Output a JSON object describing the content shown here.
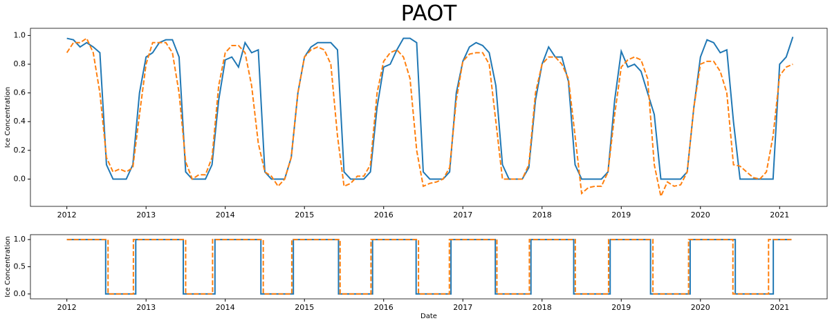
{
  "chart_data": [
    {
      "type": "line",
      "title": "PAOT",
      "ylabel": "Ice Concentration",
      "x": [
        2012,
        2012.083,
        2012.167,
        2012.25,
        2012.333,
        2012.417,
        2012.5,
        2012.583,
        2012.667,
        2012.75,
        2012.833,
        2012.917,
        2013,
        2013.083,
        2013.167,
        2013.25,
        2013.333,
        2013.417,
        2013.5,
        2013.583,
        2013.667,
        2013.75,
        2013.833,
        2013.917,
        2014,
        2014.083,
        2014.167,
        2014.25,
        2014.333,
        2014.417,
        2014.5,
        2014.583,
        2014.667,
        2014.75,
        2014.833,
        2014.917,
        2015,
        2015.083,
        2015.167,
        2015.25,
        2015.333,
        2015.417,
        2015.5,
        2015.583,
        2015.667,
        2015.75,
        2015.833,
        2015.917,
        2016,
        2016.083,
        2016.167,
        2016.25,
        2016.333,
        2016.417,
        2016.5,
        2016.583,
        2016.667,
        2016.75,
        2016.833,
        2016.917,
        2017,
        2017.083,
        2017.167,
        2017.25,
        2017.333,
        2017.417,
        2017.5,
        2017.583,
        2017.667,
        2017.75,
        2017.833,
        2017.917,
        2018,
        2018.083,
        2018.167,
        2018.25,
        2018.333,
        2018.417,
        2018.5,
        2018.583,
        2018.667,
        2018.75,
        2018.833,
        2018.917,
        2019,
        2019.083,
        2019.167,
        2019.25,
        2019.333,
        2019.417,
        2019.5,
        2019.583,
        2019.667,
        2019.75,
        2019.833,
        2019.917,
        2020,
        2020.083,
        2020.167,
        2020.25,
        2020.333,
        2020.417,
        2020.5,
        2020.583,
        2020.667,
        2020.75,
        2020.833,
        2020.917,
        2021,
        2021.083,
        2021.167
      ],
      "xlim": [
        2011.54,
        2021.6
      ],
      "xticks": [
        2012,
        2013,
        2014,
        2015,
        2016,
        2017,
        2018,
        2019,
        2020,
        2021
      ],
      "ylim": [
        -0.19,
        1.05
      ],
      "yticks": [
        {
          "value": 0,
          "label": "0.0"
        },
        0.2,
        0.4,
        0.6,
        0.8,
        {
          "value": 1,
          "label": "1.0"
        }
      ],
      "series": [
        {
          "color": "#1f77b4",
          "linestyle": "solid",
          "values": [
            0.98,
            0.97,
            0.92,
            0.95,
            0.92,
            0.88,
            0.1,
            0,
            0,
            0,
            0.1,
            0.6,
            0.85,
            0.88,
            0.95,
            0.97,
            0.97,
            0.85,
            0.05,
            0,
            0,
            0,
            0.1,
            0.55,
            0.83,
            0.85,
            0.78,
            0.95,
            0.88,
            0.9,
            0.05,
            0,
            0,
            0,
            0.15,
            0.6,
            0.85,
            0.92,
            0.95,
            0.95,
            0.95,
            0.9,
            0.05,
            0,
            0,
            0,
            0.05,
            0.5,
            0.78,
            0.8,
            0.9,
            0.98,
            0.98,
            0.95,
            0.05,
            0,
            0,
            0,
            0.05,
            0.6,
            0.82,
            0.92,
            0.95,
            0.93,
            0.88,
            0.65,
            0.1,
            0,
            0,
            0,
            0.08,
            0.55,
            0.8,
            0.92,
            0.85,
            0.85,
            0.68,
            0.1,
            0,
            0,
            0,
            0,
            0.05,
            0.55,
            0.89,
            0.78,
            0.8,
            0.75,
            0.6,
            0.45,
            0,
            0,
            0,
            0,
            0.05,
            0.5,
            0.85,
            0.97,
            0.95,
            0.88,
            0.9,
            0.4,
            0,
            0,
            0,
            0,
            0,
            0,
            0.8,
            0.85,
            0.99
          ]
        },
        {
          "color": "#ff7f0e",
          "linestyle": "dashed",
          "values": [
            0.88,
            0.95,
            0.95,
            0.98,
            0.88,
            0.6,
            0.15,
            0.05,
            0.07,
            0.05,
            0.08,
            0.45,
            0.8,
            0.95,
            0.95,
            0.95,
            0.88,
            0.6,
            0.12,
            0,
            0.03,
            0.03,
            0.15,
            0.65,
            0.88,
            0.93,
            0.93,
            0.88,
            0.65,
            0.25,
            0.05,
            0.02,
            -0.05,
            0,
            0.15,
            0.6,
            0.85,
            0.9,
            0.92,
            0.9,
            0.8,
            0.3,
            -0.05,
            -0.03,
            0.02,
            0.02,
            0.1,
            0.6,
            0.82,
            0.88,
            0.9,
            0.85,
            0.7,
            0.2,
            -0.05,
            -0.03,
            -0.02,
            0,
            0.08,
            0.55,
            0.82,
            0.87,
            0.88,
            0.88,
            0.8,
            0.4,
            0,
            0,
            0,
            0,
            0.1,
            0.6,
            0.8,
            0.85,
            0.85,
            0.8,
            0.7,
            0.3,
            -0.1,
            -0.06,
            -0.05,
            -0.05,
            0.05,
            0.45,
            0.78,
            0.83,
            0.85,
            0.83,
            0.7,
            0.1,
            -0.12,
            -0.02,
            -0.05,
            -0.04,
            0.05,
            0.5,
            0.8,
            0.82,
            0.82,
            0.75,
            0.6,
            0.1,
            0.09,
            0.05,
            0.01,
            0,
            0.05,
            0.3,
            0.72,
            0.78,
            0.8
          ]
        }
      ]
    },
    {
      "type": "line",
      "ylabel": "Ice Concentration",
      "xlabel": "Date",
      "xlim": [
        2011.54,
        2021.6
      ],
      "xticks": [
        2012,
        2013,
        2014,
        2015,
        2016,
        2017,
        2018,
        2019,
        2020,
        2021
      ],
      "ylim": [
        -0.09,
        1.09
      ],
      "yticks": [
        {
          "value": 0,
          "label": "0.0"
        },
        0.5,
        {
          "value": 1,
          "label": "1.0"
        }
      ],
      "series": [
        {
          "color": "#1f77b4",
          "linestyle": "solid",
          "x": [
            2012,
            2012.49,
            2012.49,
            2012.87,
            2012.87,
            2013.47,
            2013.47,
            2013.87,
            2013.87,
            2014.45,
            2014.45,
            2014.86,
            2014.86,
            2015.43,
            2015.43,
            2015.86,
            2015.86,
            2016.41,
            2016.41,
            2016.85,
            2016.85,
            2017.41,
            2017.41,
            2017.86,
            2017.86,
            2018.4,
            2018.4,
            2018.86,
            2018.86,
            2019.37,
            2019.37,
            2019.87,
            2019.87,
            2020.44,
            2020.44,
            2020.92,
            2020.92,
            2021.15
          ],
          "values": [
            1,
            1,
            0,
            0,
            1,
            1,
            0,
            0,
            1,
            1,
            0,
            0,
            1,
            1,
            0,
            0,
            1,
            1,
            0,
            0,
            1,
            1,
            0,
            0,
            1,
            1,
            0,
            0,
            1,
            1,
            0,
            0,
            1,
            1,
            0,
            0,
            1,
            1
          ]
        },
        {
          "color": "#ff7f0e",
          "linestyle": "dashed",
          "x": [
            2012,
            2012.52,
            2012.52,
            2012.84,
            2012.84,
            2013.5,
            2013.5,
            2013.84,
            2013.84,
            2014.48,
            2014.48,
            2014.84,
            2014.84,
            2015.45,
            2015.45,
            2015.84,
            2015.84,
            2016.44,
            2016.44,
            2016.83,
            2016.83,
            2017.43,
            2017.43,
            2017.84,
            2017.84,
            2018.42,
            2018.42,
            2018.84,
            2018.84,
            2019.4,
            2019.4,
            2019.85,
            2019.85,
            2020.41,
            2020.41,
            2020.86,
            2020.86,
            2021.15
          ],
          "values": [
            1,
            1,
            0,
            0,
            1,
            1,
            0,
            0,
            1,
            1,
            0,
            0,
            1,
            1,
            0,
            0,
            1,
            1,
            0,
            0,
            1,
            1,
            0,
            0,
            1,
            1,
            0,
            0,
            1,
            1,
            0,
            0,
            1,
            1,
            0,
            0,
            1,
            1
          ]
        }
      ]
    }
  ]
}
